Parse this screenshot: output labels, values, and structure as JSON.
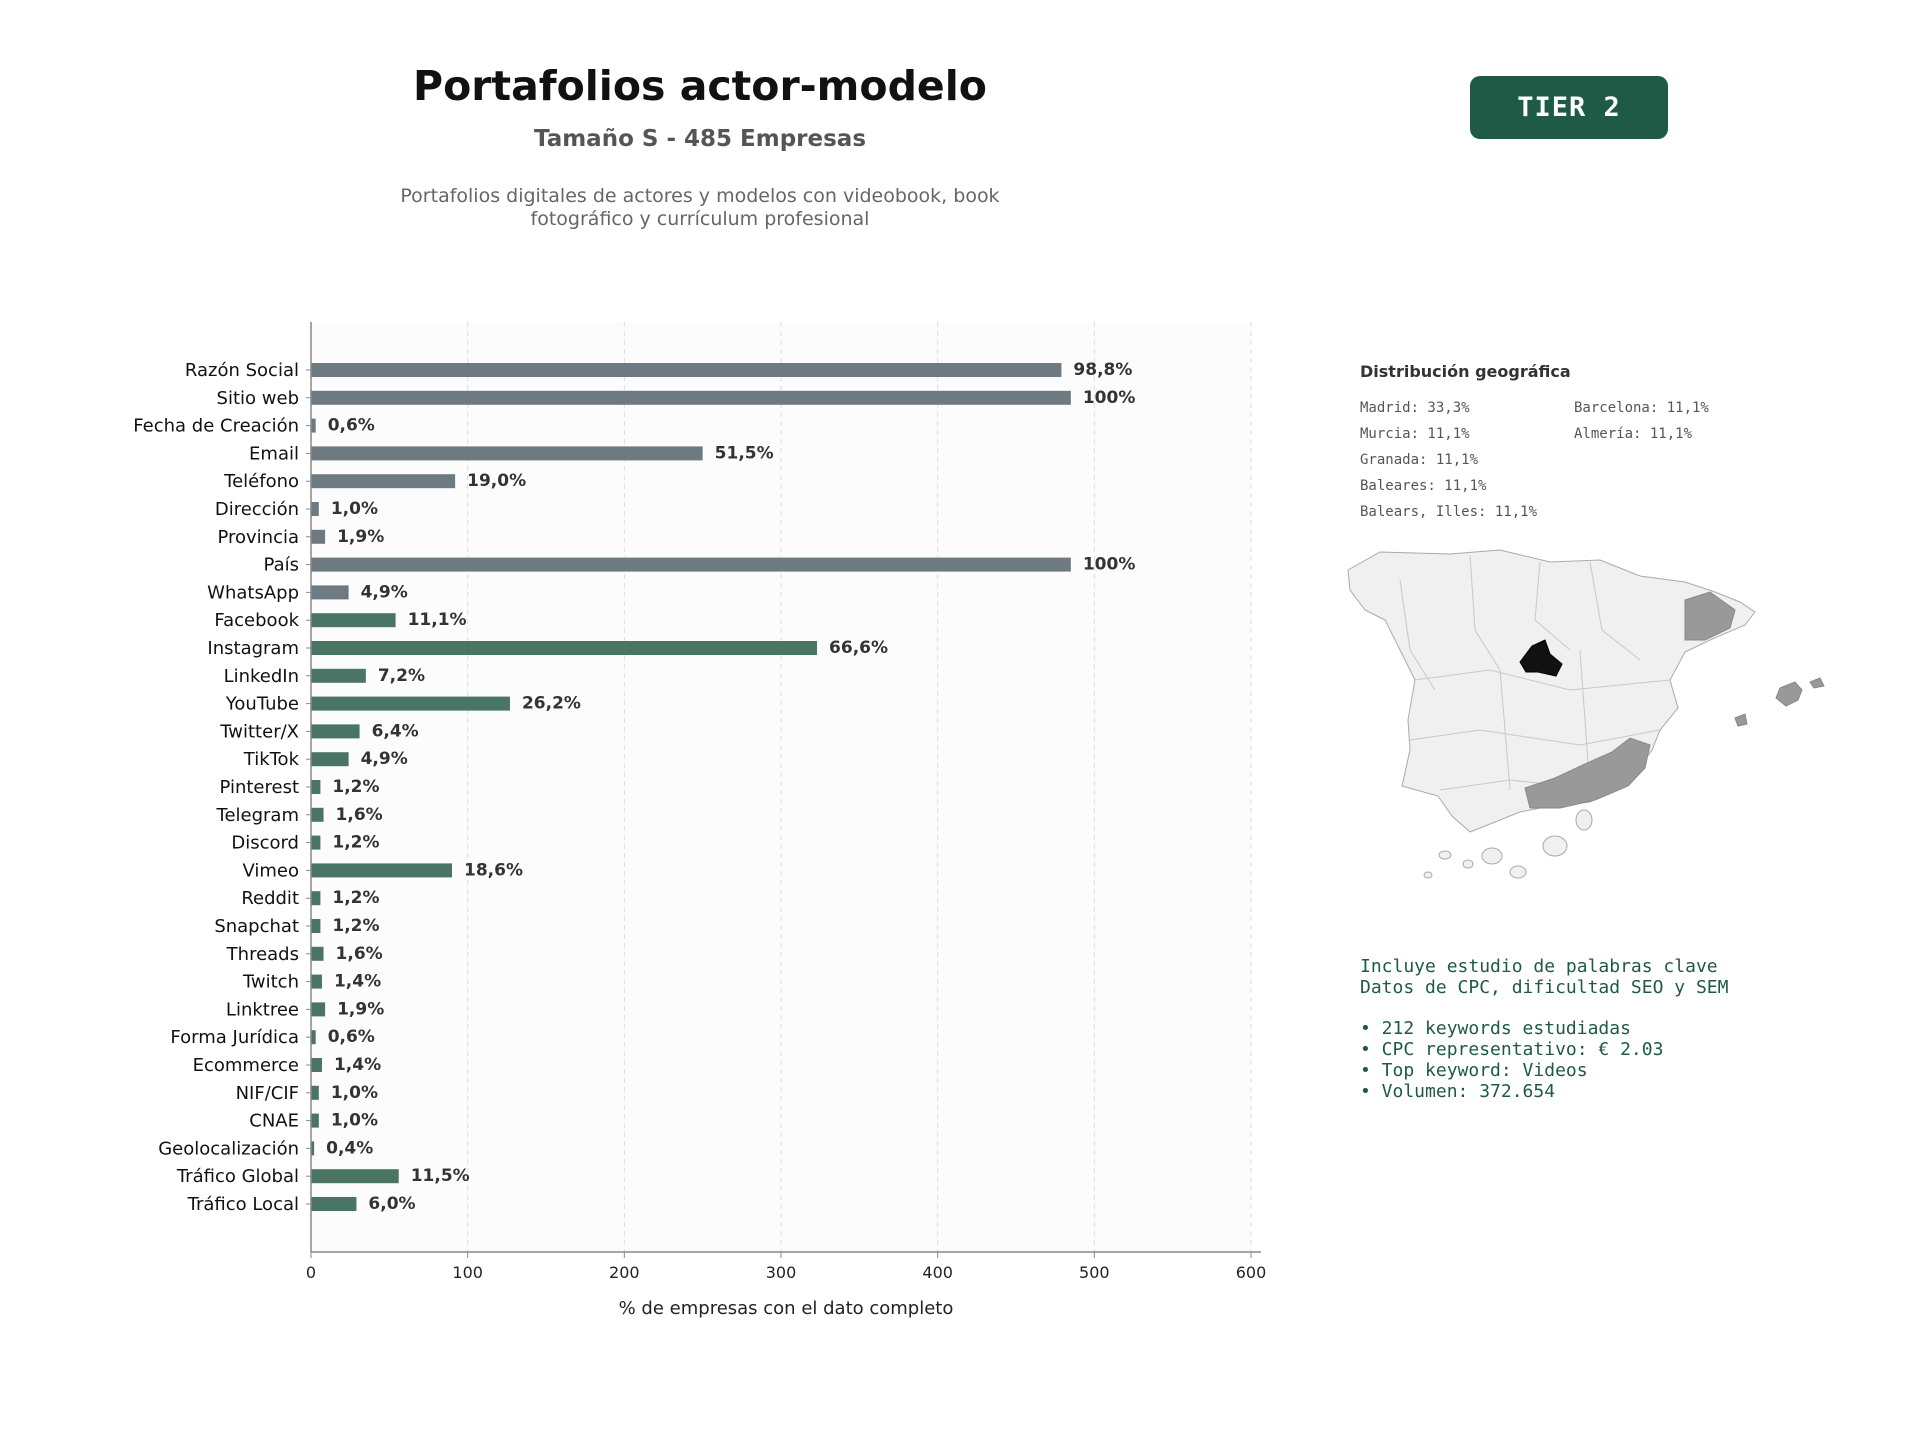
{
  "header": {
    "title": "Portafolios actor-modelo",
    "subtitle": "Tamaño S - 485 Empresas",
    "description": "Portafolios digitales de actores y modelos con videobook, book fotográfico y currículum profesional",
    "tier": "TIER 2"
  },
  "colors": {
    "gray_bar": "#6e7a82",
    "green_bar": "#4a7565",
    "tier_bg": "#1e5a45",
    "map_highlight": "#111111",
    "map_secondary": "#999999",
    "map_base": "#f0f0f0"
  },
  "chart_data": {
    "type": "bar",
    "orientation": "horizontal",
    "xlabel": "% de empresas con el dato completo",
    "xlim": [
      0,
      600
    ],
    "xticks": [
      "0",
      "100",
      "200",
      "300",
      "400",
      "500",
      "600"
    ],
    "grid": "vertical dashed",
    "categories": [
      "Razón Social",
      "Sitio web",
      "Fecha de Creación",
      "Email",
      "Teléfono",
      "Dirección",
      "Provincia",
      "País",
      "WhatsApp",
      "Facebook",
      "Instagram",
      "LinkedIn",
      "YouTube",
      "Twitter/X",
      "TikTok",
      "Pinterest",
      "Telegram",
      "Discord",
      "Vimeo",
      "Reddit",
      "Snapchat",
      "Threads",
      "Twitch",
      "Linktree",
      "Forma Jurídica",
      "Ecommerce",
      "NIF/CIF",
      "CNAE",
      "Geolocalización",
      "Tráfico Global",
      "Tráfico Local"
    ],
    "values": [
      479,
      485,
      3,
      250,
      92,
      5,
      9,
      485,
      24,
      54,
      323,
      35,
      127,
      31,
      24,
      6,
      8,
      6,
      90,
      6,
      6,
      8,
      7,
      9,
      3,
      7,
      5,
      5,
      2,
      56,
      29
    ],
    "labels": [
      "98,8%",
      "100%",
      "0,6%",
      "51,5%",
      "19,0%",
      "1,0%",
      "1,9%",
      "100%",
      "4,9%",
      "11,1%",
      "66,6%",
      "7,2%",
      "26,2%",
      "6,4%",
      "4,9%",
      "1,2%",
      "1,6%",
      "1,2%",
      "18,6%",
      "1,2%",
      "1,2%",
      "1,6%",
      "1,4%",
      "1,9%",
      "0,6%",
      "1,4%",
      "1,0%",
      "1,0%",
      "0,4%",
      "11,5%",
      "6,0%"
    ],
    "groups": [
      "gray",
      "gray",
      "gray",
      "gray",
      "gray",
      "gray",
      "gray",
      "gray",
      "gray",
      "green",
      "green",
      "green",
      "green",
      "green",
      "green",
      "green",
      "green",
      "green",
      "green",
      "green",
      "green",
      "green",
      "green",
      "green",
      "green",
      "green",
      "green",
      "green",
      "green",
      "green",
      "green"
    ]
  },
  "geo": {
    "title": "Distribución geográfica",
    "items": [
      "Madrid: 33,3%",
      "Barcelona: 11,1%",
      "Murcia: 11,1%",
      "Almería: 11,1%",
      "Granada: 11,1%",
      "Baleares: 11,1%",
      "Balears, Illes: 11,1%"
    ]
  },
  "keywords": {
    "line1": "Incluye estudio de palabras clave",
    "line2": "Datos de CPC, dificultad SEO y SEM",
    "bullets": [
      "• 212 keywords estudiadas",
      "• CPC representativo: € 2.03",
      "• Top keyword: Videos",
      "• Volumen: 372.654"
    ]
  }
}
